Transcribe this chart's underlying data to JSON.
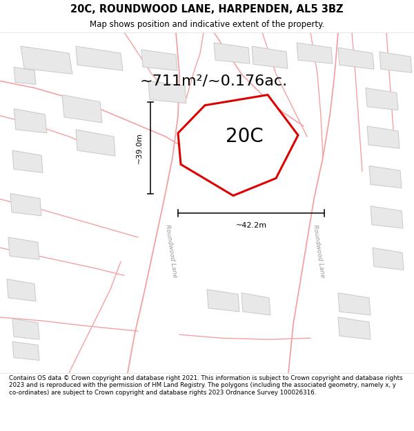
{
  "title": "20C, ROUNDWOOD LANE, HARPENDEN, AL5 3BZ",
  "subtitle": "Map shows position and indicative extent of the property.",
  "area_text": "~711m²/~0.176ac.",
  "label_20c": "20C",
  "dim_vertical": "~39.0m",
  "dim_horizontal": "~42.2m",
  "footer": "Contains OS data © Crown copyright and database right 2021. This information is subject to Crown copyright and database rights 2023 and is reproduced with the permission of HM Land Registry. The polygons (including the associated geometry, namely x, y co-ordinates) are subject to Crown copyright and database rights 2023 Ordnance Survey 100026316.",
  "bg_color": "#ffffff",
  "map_bg": "#ffffff",
  "property_color": "#dd0000",
  "road_color": "#f5a0a0",
  "road_fill": "#fce8e8",
  "building_color": "#e8e8e8",
  "building_edge": "#c8c8c8",
  "dim_color": "#111111",
  "label_road": "#aaaaaa"
}
